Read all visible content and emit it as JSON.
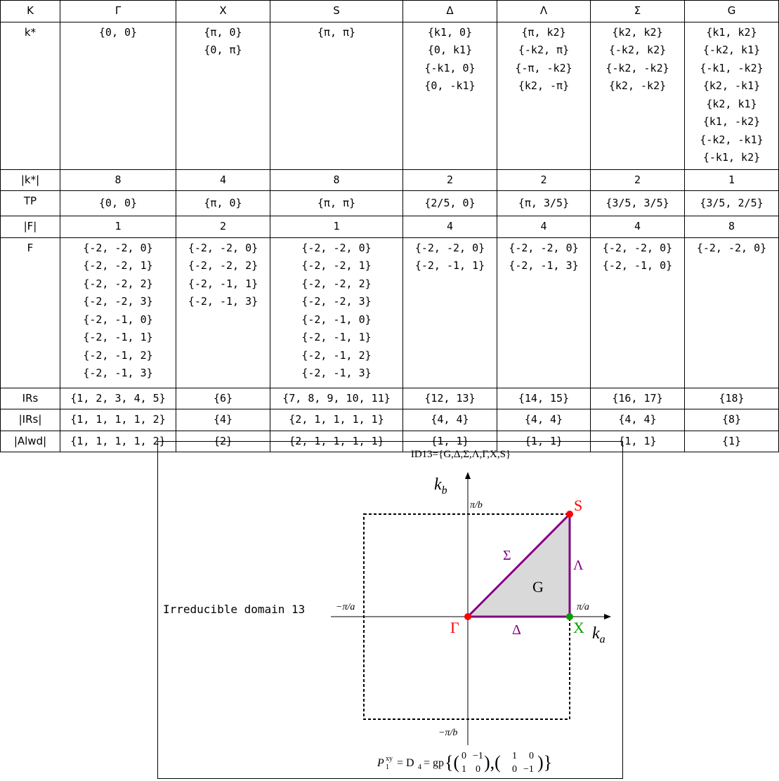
{
  "table": {
    "columns": [
      "K",
      "Γ",
      "X",
      "S",
      "Δ",
      "Λ",
      "Σ",
      "G"
    ],
    "rows": [
      {
        "label": "k*",
        "cells": [
          [
            "{0, 0}"
          ],
          [
            "{π, 0}",
            "{0, π}"
          ],
          [
            "{π, π}"
          ],
          [
            "{k1, 0}",
            "{0, k1}",
            "{-k1, 0}",
            "{0, -k1}"
          ],
          [
            "{π, k2}",
            "{-k2, π}",
            "{-π, -k2}",
            "{k2, -π}"
          ],
          [
            "{k2, k2}",
            "{-k2, k2}",
            "{-k2, -k2}",
            "{k2, -k2}"
          ],
          [
            "{k1, k2}",
            "{-k2, k1}",
            "{-k1, -k2}",
            "{k2, -k1}",
            "{k2, k1}",
            "{k1, -k2}",
            "{-k2, -k1}",
            "{-k1, k2}"
          ]
        ]
      },
      {
        "label": "|k*|",
        "cells": [
          [
            "8"
          ],
          [
            "4"
          ],
          [
            "8"
          ],
          [
            "2"
          ],
          [
            "2"
          ],
          [
            "2"
          ],
          [
            "1"
          ]
        ]
      },
      {
        "label": "TP",
        "cells": [
          [
            "{0, 0}"
          ],
          [
            "{π, 0}"
          ],
          [
            "{π, π}"
          ],
          [
            "{2/5, 0}"
          ],
          [
            "{π, 3/5}"
          ],
          [
            "{3/5, 3/5}"
          ],
          [
            "{3/5, 2/5}"
          ]
        ]
      },
      {
        "label": "|F|",
        "cells": [
          [
            "1"
          ],
          [
            "2"
          ],
          [
            "1"
          ],
          [
            "4"
          ],
          [
            "4"
          ],
          [
            "4"
          ],
          [
            "8"
          ]
        ]
      },
      {
        "label": "F",
        "cells": [
          [
            "{-2, -2, 0}",
            "{-2, -2, 1}",
            "{-2, -2, 2}",
            "{-2, -2, 3}",
            "{-2, -1, 0}",
            "{-2, -1, 1}",
            "{-2, -1, 2}",
            "{-2, -1, 3}"
          ],
          [
            "{-2, -2, 0}",
            "{-2, -2, 2}",
            "{-2, -1, 1}",
            "{-2, -1, 3}"
          ],
          [
            "{-2, -2, 0}",
            "{-2, -2, 1}",
            "{-2, -2, 2}",
            "{-2, -2, 3}",
            "{-2, -1, 0}",
            "{-2, -1, 1}",
            "{-2, -1, 2}",
            "{-2, -1, 3}"
          ],
          [
            "{-2, -2, 0}",
            "{-2, -1, 1}"
          ],
          [
            "{-2, -2, 0}",
            "{-2, -1, 3}"
          ],
          [
            "{-2, -2, 0}",
            "{-2, -1, 0}"
          ],
          [
            "{-2, -2, 0}"
          ]
        ]
      },
      {
        "label": "IRs",
        "cells": [
          [
            "{1, 2, 3, 4, 5}"
          ],
          [
            "{6}"
          ],
          [
            "{7, 8, 9, 10, 11}"
          ],
          [
            "{12, 13}"
          ],
          [
            "{14, 15}"
          ],
          [
            "{16, 17}"
          ],
          [
            "{18}"
          ]
        ]
      },
      {
        "label": "|IRs|",
        "cells": [
          [
            "{1, 1, 1, 1, 2}"
          ],
          [
            "{4}"
          ],
          [
            "{2, 1, 1, 1, 1}"
          ],
          [
            "{4, 4}"
          ],
          [
            "{4, 4}"
          ],
          [
            "{4, 4}"
          ],
          [
            "{8}"
          ]
        ]
      },
      {
        "label": "|Alwd|",
        "cells": [
          [
            "{1, 1, 1, 1, 2}"
          ],
          [
            "{2}"
          ],
          [
            "{2, 1, 1, 1, 1}"
          ],
          [
            "{1, 1}"
          ],
          [
            "{1, 1}"
          ],
          [
            "{1, 1}"
          ],
          [
            "{1}"
          ]
        ]
      }
    ]
  },
  "caption": "Irreducible domain 13",
  "diagram": {
    "title": "ID13={G,Δ,Σ,Λ,Γ,X,S}",
    "axis_a": "k",
    "axis_a_sub": "a",
    "axis_b": "k",
    "axis_b_sub": "b",
    "tick_pa": "π/a",
    "tick_ma": "−π/a",
    "tick_pb": "π/b",
    "tick_mb": "−π/b",
    "points": {
      "gamma": "Γ",
      "x": "X",
      "s": "S"
    },
    "lines": {
      "delta": "Δ",
      "sigma": "Σ",
      "lambda": "Λ"
    },
    "region": "G",
    "formula": {
      "lhs": "P",
      "lhs_sup": "xy",
      "lhs_sub": "1",
      "mid": "= D",
      "mid_sub": "4",
      "rhs": "= gp",
      "m1": [
        "0",
        "−1",
        "1",
        "0"
      ],
      "m2": [
        "1",
        "0",
        "0",
        "−1"
      ]
    },
    "colors": {
      "path": "#800080",
      "gamma": "#ff0000",
      "s": "#ff0000",
      "x": "#00a000",
      "fill": "#d9d9d9"
    }
  }
}
